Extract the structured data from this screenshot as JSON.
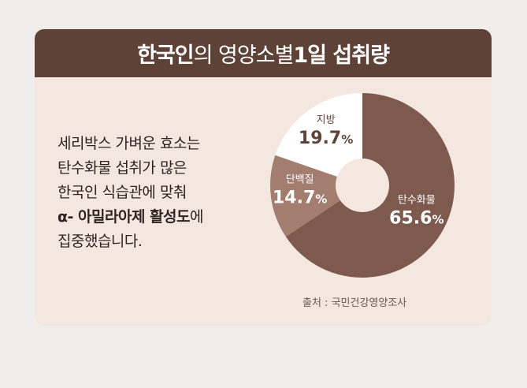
{
  "header": {
    "title_bold_1": "한국인",
    "title_light": "의 영양소별 ",
    "title_bold_2": "1일 섭취량"
  },
  "body_text": {
    "line1": "세리박스 가벼운 효소는",
    "line2": "탄수화물 섭취가 많은",
    "line3": "한국인 식습관에 맞춰",
    "line4_bold": "α- 아밀라아제 활성도",
    "line4_rest": "에",
    "line5": "집중했습니다."
  },
  "source": "출처 : 국민건강영양조사",
  "colors": {
    "header_bg": "#5e4237",
    "card_bg": "#f4e7e0",
    "carb": "#7d5a4d",
    "protein": "#a37e70",
    "fat": "#ffffff"
  },
  "chart_data": {
    "type": "pie",
    "donut": true,
    "slices": [
      {
        "label": "탄수화물",
        "value": 65.6,
        "value_text": "65.6",
        "unit": "%",
        "color": "#7d5a4d",
        "text_color": "#ffffff"
      },
      {
        "label": "단백질",
        "value": 14.7,
        "value_text": "14.7",
        "unit": "%",
        "color": "#a37e70",
        "text_color": "#ffffff"
      },
      {
        "label": "지방",
        "value": 19.7,
        "value_text": "19.7",
        "unit": "%",
        "color": "#ffffff",
        "text_color": "#5e4237"
      }
    ]
  }
}
